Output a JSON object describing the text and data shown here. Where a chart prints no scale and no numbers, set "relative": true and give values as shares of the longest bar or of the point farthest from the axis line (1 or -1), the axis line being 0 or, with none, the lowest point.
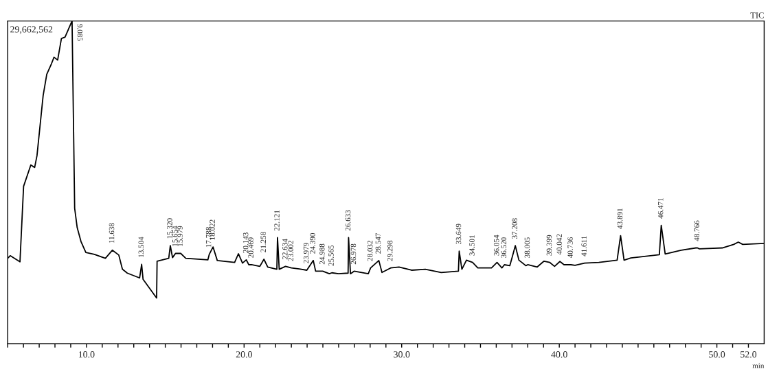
{
  "chart_data": {
    "type": "line",
    "title": "TIC",
    "xlabel": "min",
    "relative": true,
    "x": [
      5.0,
      5.16,
      5.78,
      6.01,
      6.47,
      6.71,
      6.86,
      7.25,
      7.48,
      7.79,
      7.94,
      8.17,
      8.41,
      8.64,
      8.95,
      9.085,
      9.25,
      9.41,
      9.65,
      9.96,
      10.5,
      11.2,
      11.64,
      12.05,
      12.28,
      12.59,
      13.37,
      13.5,
      13.59,
      14.45,
      14.48,
      15.22,
      15.32,
      15.46,
      15.65,
      15.98,
      16.3,
      17.7,
      17.79,
      18.03,
      18.3,
      19.4,
      19.64,
      19.9,
      20.14,
      20.3,
      20.47,
      21.0,
      21.26,
      21.5,
      22.08,
      22.12,
      22.23,
      22.63,
      23.0,
      23.5,
      23.98,
      24.39,
      24.54,
      24.99,
      25.41,
      25.57,
      25.99,
      26.6,
      26.63,
      26.75,
      26.98,
      27.88,
      28.03,
      28.55,
      28.75,
      29.3,
      29.83,
      30.63,
      31.5,
      32.51,
      33.6,
      33.65,
      33.82,
      34.11,
      34.5,
      34.83,
      35.7,
      36.05,
      36.36,
      36.52,
      36.86,
      37.0,
      37.21,
      37.44,
      37.88,
      38.0,
      38.6,
      39.03,
      39.4,
      39.7,
      40.04,
      40.3,
      40.74,
      41.0,
      41.61,
      42.51,
      43.67,
      43.89,
      44.11,
      44.54,
      45.12,
      46.35,
      46.47,
      46.72,
      47.73,
      48.67,
      48.77,
      48.89,
      50.34,
      51.07,
      51.36,
      51.64,
      53.0
    ],
    "values": [
      0.265,
      0.273,
      0.254,
      0.488,
      0.554,
      0.546,
      0.583,
      0.769,
      0.835,
      0.869,
      0.888,
      0.879,
      0.946,
      0.95,
      0.985,
      1.0,
      0.42,
      0.36,
      0.317,
      0.283,
      0.277,
      0.265,
      0.29,
      0.275,
      0.231,
      0.219,
      0.204,
      0.246,
      0.2,
      0.142,
      0.256,
      0.265,
      0.304,
      0.267,
      0.28,
      0.28,
      0.265,
      0.26,
      0.277,
      0.3,
      0.258,
      0.252,
      0.279,
      0.25,
      0.26,
      0.245,
      0.245,
      0.24,
      0.262,
      0.238,
      0.231,
      0.329,
      0.231,
      0.24,
      0.235,
      0.232,
      0.228,
      0.258,
      0.225,
      0.225,
      0.217,
      0.22,
      0.217,
      0.219,
      0.329,
      0.217,
      0.225,
      0.217,
      0.235,
      0.258,
      0.221,
      0.235,
      0.238,
      0.228,
      0.231,
      0.221,
      0.225,
      0.287,
      0.231,
      0.259,
      0.252,
      0.235,
      0.235,
      0.252,
      0.235,
      0.245,
      0.242,
      0.266,
      0.304,
      0.259,
      0.242,
      0.245,
      0.238,
      0.256,
      0.252,
      0.24,
      0.255,
      0.245,
      0.245,
      0.243,
      0.25,
      0.252,
      0.259,
      0.335,
      0.259,
      0.266,
      0.269,
      0.276,
      0.367,
      0.278,
      0.29,
      0.297,
      0.297,
      0.294,
      0.297,
      0.308,
      0.315,
      0.308,
      0.311
    ],
    "color": "#000000",
    "xlim": [
      5.0,
      53.0
    ],
    "xticks": [
      {
        "value": 5,
        "label": null
      },
      {
        "value": 6,
        "label": null
      },
      {
        "value": 7,
        "label": null
      },
      {
        "value": 8,
        "label": null
      },
      {
        "value": 9,
        "label": null
      },
      {
        "value": 10,
        "label": "10.0"
      },
      {
        "value": 11,
        "label": null
      },
      {
        "value": 12,
        "label": null
      },
      {
        "value": 13,
        "label": null
      },
      {
        "value": 14,
        "label": null
      },
      {
        "value": 15,
        "label": null
      },
      {
        "value": 16,
        "label": null
      },
      {
        "value": 17,
        "label": null
      },
      {
        "value": 18,
        "label": null
      },
      {
        "value": 19,
        "label": null
      },
      {
        "value": 20,
        "label": "20.0"
      },
      {
        "value": 21,
        "label": null
      },
      {
        "value": 22,
        "label": null
      },
      {
        "value": 23,
        "label": null
      },
      {
        "value": 24,
        "label": null
      },
      {
        "value": 25,
        "label": null
      },
      {
        "value": 26,
        "label": null
      },
      {
        "value": 27,
        "label": null
      },
      {
        "value": 28,
        "label": null
      },
      {
        "value": 29,
        "label": null
      },
      {
        "value": 30,
        "label": "30.0"
      },
      {
        "value": 31,
        "label": null
      },
      {
        "value": 32,
        "label": null
      },
      {
        "value": 33,
        "label": null
      },
      {
        "value": 34,
        "label": null
      },
      {
        "value": 35,
        "label": null
      },
      {
        "value": 36,
        "label": null
      },
      {
        "value": 37,
        "label": null
      },
      {
        "value": 38,
        "label": null
      },
      {
        "value": 39,
        "label": null
      },
      {
        "value": 40,
        "label": "40.0"
      },
      {
        "value": 41,
        "label": null
      },
      {
        "value": 42,
        "label": null
      },
      {
        "value": 43,
        "label": null
      },
      {
        "value": 44,
        "label": null
      },
      {
        "value": 45,
        "label": null
      },
      {
        "value": 46,
        "label": null
      },
      {
        "value": 47,
        "label": null
      },
      {
        "value": 48,
        "label": null
      },
      {
        "value": 49,
        "label": null
      },
      {
        "value": 50,
        "label": "50.0"
      },
      {
        "value": 51,
        "label": null
      },
      {
        "value": 52,
        "label": "52.0"
      }
    ],
    "tick_labels": "x",
    "annotations": [
      "29,662,562",
      {
        "text": "9.085",
        "x": 9.085,
        "y": 1.0
      },
      {
        "text": "11.638",
        "x": 11.638,
        "y": 0.29
      },
      {
        "text": "13.504",
        "x": 13.504,
        "y": 0.246
      },
      {
        "text": "15.320",
        "x": 15.32,
        "y": 0.304
      },
      {
        "text": "15.654",
        "x": 15.654,
        "y": 0.28
      },
      {
        "text": "15.979",
        "x": 15.979,
        "y": 0.28
      },
      {
        "text": "17.788",
        "x": 17.788,
        "y": 0.277
      },
      {
        "text": "18.022",
        "x": 18.022,
        "y": 0.3
      },
      {
        "text": "20.143",
        "x": 20.143,
        "y": 0.26
      },
      {
        "text": "20.469",
        "x": 20.469,
        "y": 0.245
      },
      {
        "text": "21.258",
        "x": 21.258,
        "y": 0.262
      },
      {
        "text": "22.121",
        "x": 22.121,
        "y": 0.329
      },
      {
        "text": "22.634",
        "x": 22.634,
        "y": 0.24
      },
      {
        "text": "23.002",
        "x": 23.002,
        "y": 0.235
      },
      {
        "text": "23.979",
        "x": 23.979,
        "y": 0.228
      },
      {
        "text": "24.390",
        "x": 24.39,
        "y": 0.258
      },
      {
        "text": "24.988",
        "x": 24.988,
        "y": 0.225
      },
      {
        "text": "25.565",
        "x": 25.565,
        "y": 0.22
      },
      {
        "text": "26.633",
        "x": 26.633,
        "y": 0.329
      },
      {
        "text": "26.978",
        "x": 26.978,
        "y": 0.225
      },
      {
        "text": "28.032",
        "x": 28.032,
        "y": 0.235
      },
      {
        "text": "28.547",
        "x": 28.547,
        "y": 0.258
      },
      {
        "text": "29.298",
        "x": 29.298,
        "y": 0.235
      },
      {
        "text": "33.649",
        "x": 33.649,
        "y": 0.287
      },
      {
        "text": "34.501",
        "x": 34.501,
        "y": 0.252
      },
      {
        "text": "36.054",
        "x": 36.054,
        "y": 0.252
      },
      {
        "text": "36.520",
        "x": 36.52,
        "y": 0.245
      },
      {
        "text": "37.208",
        "x": 37.208,
        "y": 0.304
      },
      {
        "text": "38.005",
        "x": 38.005,
        "y": 0.245
      },
      {
        "text": "39.399",
        "x": 39.399,
        "y": 0.252
      },
      {
        "text": "40.042",
        "x": 40.042,
        "y": 0.255
      },
      {
        "text": "40.736",
        "x": 40.736,
        "y": 0.245
      },
      {
        "text": "41.611",
        "x": 41.611,
        "y": 0.25
      },
      {
        "text": "43.891",
        "x": 43.891,
        "y": 0.335
      },
      {
        "text": "46.471",
        "x": 46.471,
        "y": 0.367
      },
      {
        "text": "48.766",
        "x": 48.766,
        "y": 0.297
      }
    ]
  }
}
